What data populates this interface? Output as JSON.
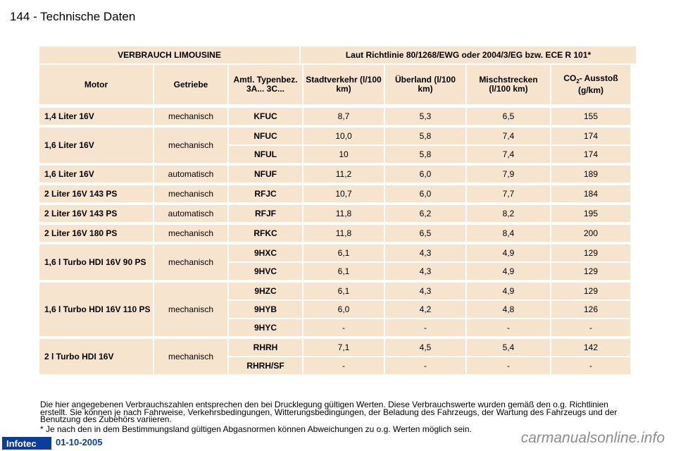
{
  "header": {
    "title": "144 - Technische Daten"
  },
  "table": {
    "title_left": "VERBRAUCH LIMOUSINE",
    "title_right": "Laut Richtlinie 80/1268/EWG oder 2004/3/EG bzw. ECE R 101*",
    "columns": {
      "motor": "Motor",
      "getriebe": "Getriebe",
      "typ": "Amtl. Typenbez. 3A... 3C...",
      "stadt": "Stadtverkehr (l/100 km)",
      "ueberland": "Überland (l/100 km)",
      "misch": "Mischstrecken (l/100 km)",
      "co2_pre": "CO",
      "co2_sub": "2",
      "co2_post": "- Ausstoß (g/km)"
    },
    "groups": [
      {
        "motor": "1,4 Liter 16V",
        "getriebe": "mechanisch",
        "rows": [
          {
            "typ": "KFUC",
            "stadt": "8,7",
            "ueberland": "5,3",
            "misch": "6,5",
            "co2": "155"
          }
        ]
      },
      {
        "motor": "1,6 Liter 16V",
        "getriebe": "mechanisch",
        "rows": [
          {
            "typ": "NFUC",
            "stadt": "10,0",
            "ueberland": "5,8",
            "misch": "7,4",
            "co2": "174"
          },
          {
            "typ": "NFUL",
            "stadt": "10",
            "ueberland": "5,8",
            "misch": "7,4",
            "co2": "174"
          }
        ]
      },
      {
        "motor": "1,6 Liter 16V",
        "getriebe": "automatisch",
        "rows": [
          {
            "typ": "NFUF",
            "stadt": "11,2",
            "ueberland": "6,0",
            "misch": "7,9",
            "co2": "189"
          }
        ]
      },
      {
        "motor": "2 Liter 16V 143 PS",
        "getriebe": "mechanisch",
        "rows": [
          {
            "typ": "RFJC",
            "stadt": "10,7",
            "ueberland": "6,0",
            "misch": "7,7",
            "co2": "184"
          }
        ]
      },
      {
        "motor": "2 Liter 16V 143 PS",
        "getriebe": "automatisch",
        "rows": [
          {
            "typ": "RFJF",
            "stadt": "11,8",
            "ueberland": "6,2",
            "misch": "8,2",
            "co2": "195"
          }
        ]
      },
      {
        "motor": "2 Liter 16V 180 PS",
        "getriebe": "mechanisch",
        "rows": [
          {
            "typ": "RFKC",
            "stadt": "11,8",
            "ueberland": "6,5",
            "misch": "8,4",
            "co2": "200"
          }
        ]
      },
      {
        "motor": "1,6 l Turbo HDI 16V 90 PS",
        "getriebe": "mechanisch",
        "rows": [
          {
            "typ": "9HXC",
            "stadt": "6,1",
            "ueberland": "4,3",
            "misch": "4,9",
            "co2": "129"
          },
          {
            "typ": "9HVC",
            "stadt": "6,1",
            "ueberland": "4,3",
            "misch": "4,9",
            "co2": "129"
          }
        ]
      },
      {
        "motor": "1,6 l Turbo HDI 16V 110 PS",
        "getriebe": "mechanisch",
        "rows": [
          {
            "typ": "9HZC",
            "stadt": "6,1",
            "ueberland": "4,3",
            "misch": "4,9",
            "co2": "129"
          },
          {
            "typ": "9HYB",
            "stadt": "6,0",
            "ueberland": "4,2",
            "misch": "4,8",
            "co2": "126"
          },
          {
            "typ": "9HYC",
            "stadt": "-",
            "ueberland": "-",
            "misch": "-",
            "co2": "-"
          }
        ]
      },
      {
        "motor": "2 l Turbo HDI 16V",
        "getriebe": "mechanisch",
        "rows": [
          {
            "typ": "RHRH",
            "stadt": "7,1",
            "ueberland": "4,5",
            "misch": "5,4",
            "co2": "142"
          },
          {
            "typ": "RHRH/SF",
            "stadt": "-",
            "ueberland": "-",
            "misch": "-",
            "co2": "-"
          }
        ]
      }
    ]
  },
  "footnote": "Die hier angegebenen Verbrauchszahlen entsprechen den bei Drucklegung gültigen Werten. Diese Verbrauchswerte wurden gemäß den o.g. Richtlinien erstellt. Sie können je nach Fahrweise, Verkehrsbedingungen, Witterungsbedingungen, der Beladung des Fahrzeugs, der Wartung des Fahrzeugs und der Benutzung des Zubehörs variieren.",
  "asterisk_note": "* Je nach den in dem Bestimmungsland gültigen Abgasnormen können Abweichungen zu o.g. Werten möglich sein.",
  "footer": {
    "logo": "Infotec",
    "date": "01-10-2005",
    "watermark": "carmanualsonline.info"
  }
}
